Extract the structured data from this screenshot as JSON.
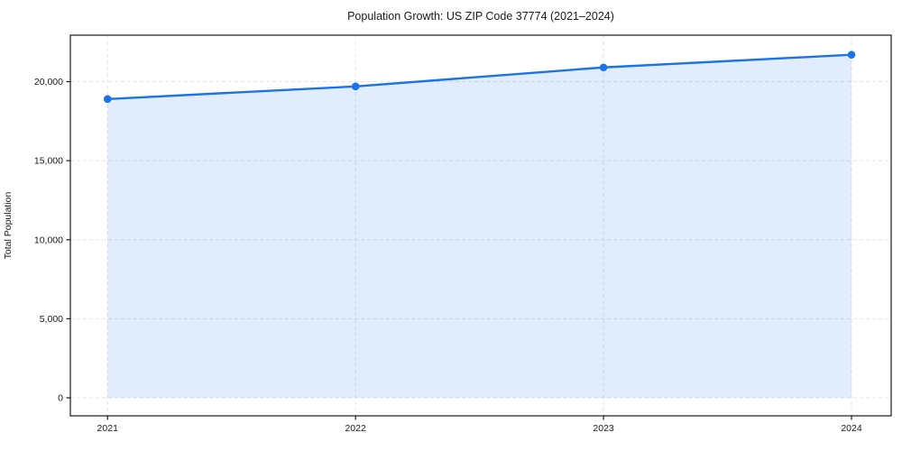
{
  "chart_data": {
    "type": "line",
    "title": "Population Growth: US ZIP Code 37774 (2021–2024)",
    "xlabel": "",
    "ylabel": "Total Population",
    "x": [
      2021,
      2022,
      2023,
      2024
    ],
    "x_tick_labels": [
      "2021",
      "2022",
      "2023",
      "2024"
    ],
    "series": [
      {
        "name": "Total Population",
        "values": [
          18900,
          19700,
          20900,
          21700
        ]
      }
    ],
    "y_ticks": [
      0,
      5000,
      10000,
      15000,
      20000
    ],
    "y_tick_labels": [
      "0",
      "5,000",
      "10,000",
      "15,000",
      "20,000"
    ],
    "xlim": [
      2020.85,
      2024.16
    ],
    "ylim": [
      -1140,
      22940
    ],
    "grid": true,
    "grid_style": "dashed",
    "legend": "none",
    "area_baseline": 0,
    "colors": {
      "line": "#1a73e8",
      "fill": "rgba(26,115,232,0.13)",
      "grid": "#e3e3e3",
      "spine": "#1a1a1a",
      "background": "#ffffff"
    }
  }
}
